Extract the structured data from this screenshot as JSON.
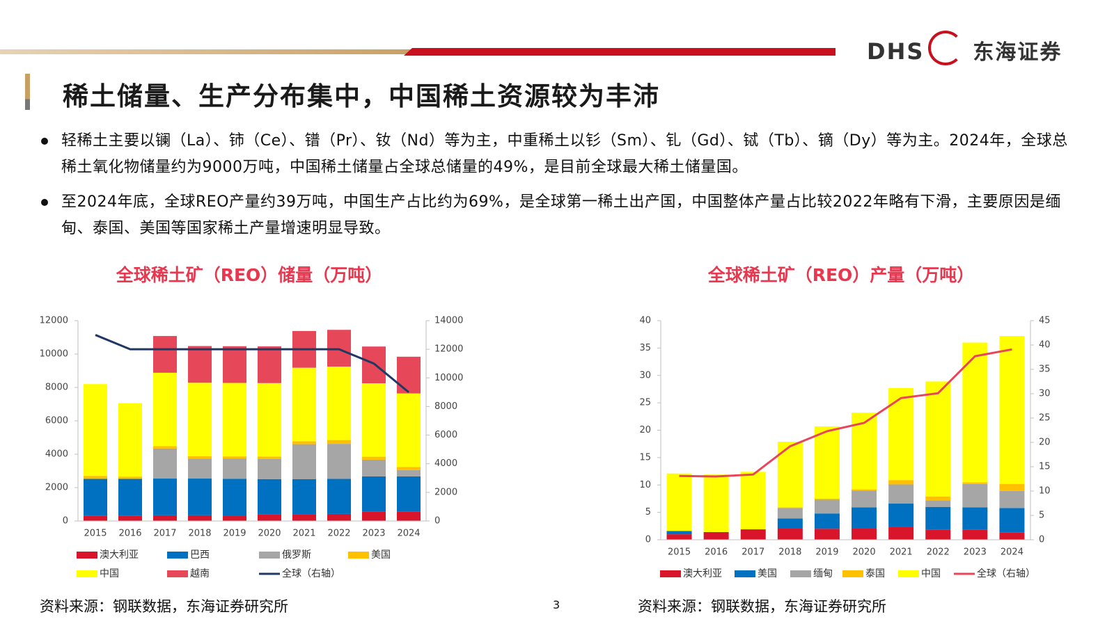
{
  "header": {
    "logo": "DHS",
    "company": "东海证券",
    "title": "稀土储量、生产分布集中，中国稀土资源较为丰沛"
  },
  "bullets": [
    "轻稀土主要以镧（La）、铈（Ce）、镨（Pr）、钕（Nd）等为主，中重稀土以钐（Sm）、钆（Gd）、铽（Tb）、镝（Dy）等为主。2024年，全球总稀土氧化物储量约为9000万吨，中国稀土储量占全球总储量的49%，是目前全球最大稀土储量国。",
    "至2024年底，全球REO产量约39万吨，中国生产占比约为69%，是全球第一稀土出产国，中国整体产量占比较2022年略有下滑，主要原因是缅甸、泰国、美国等国家稀土产量增速明显导致。"
  ],
  "sources": [
    "资料来源：钢联数据，东海证券研究所",
    "资料来源：钢联数据，东海证券研究所"
  ],
  "page_number": "3",
  "chart_data": [
    {
      "type": "stacked_bar_line",
      "title": "全球稀土矿（REO）储量（万吨）",
      "categories": [
        "2015",
        "2016",
        "2017",
        "2018",
        "2019",
        "2020",
        "2021",
        "2022",
        "2023",
        "2024"
      ],
      "ylim": [
        0,
        12000
      ],
      "yticks": [
        0,
        2000,
        4000,
        6000,
        8000,
        10000,
        12000
      ],
      "y2lim": [
        0,
        14000
      ],
      "y2ticks": [
        0,
        2000,
        4000,
        6000,
        8000,
        10000,
        12000,
        14000
      ],
      "legend": "bottom",
      "series": [
        {
          "name": "澳大利亚",
          "color": "#d9152b",
          "values": [
            320,
            320,
            340,
            340,
            330,
            410,
            400,
            420,
            570,
            570
          ]
        },
        {
          "name": "巴西",
          "color": "#0070c0",
          "values": [
            2200,
            2200,
            2200,
            2200,
            2200,
            2100,
            2100,
            2100,
            2100,
            2100
          ]
        },
        {
          "name": "俄罗斯",
          "color": "#a6a6a6",
          "values": [
            0,
            0,
            1800,
            1200,
            1200,
            1200,
            2100,
            2100,
            1000,
            380
          ]
        },
        {
          "name": "美国",
          "color": "#ffc000",
          "values": [
            180,
            140,
            140,
            140,
            140,
            150,
            180,
            230,
            180,
            190
          ]
        },
        {
          "name": "中国",
          "color": "#ffff00",
          "values": [
            5500,
            4400,
            4400,
            4400,
            4400,
            4400,
            4400,
            4400,
            4400,
            4400
          ]
        },
        {
          "name": "越南",
          "color": "#e6485a",
          "values": [
            0,
            0,
            2200,
            2200,
            2200,
            2200,
            2200,
            2200,
            2200,
            2200
          ]
        },
        {
          "name": "全球（右轴）",
          "color": "#1f3864",
          "axis": "y2",
          "values": [
            13000,
            12000,
            12000,
            12000,
            12000,
            12000,
            12000,
            12000,
            11000,
            9000
          ]
        }
      ]
    },
    {
      "type": "stacked_bar_line",
      "title": "全球稀土矿（REO）产量（万吨）",
      "categories": [
        "2015",
        "2016",
        "2017",
        "2018",
        "2019",
        "2020",
        "2021",
        "2022",
        "2023",
        "2024"
      ],
      "ylim": [
        0,
        40
      ],
      "yticks": [
        0,
        5,
        10,
        15,
        20,
        25,
        30,
        35,
        40
      ],
      "y2lim": [
        0,
        45
      ],
      "y2ticks": [
        0,
        5,
        10,
        15,
        20,
        25,
        30,
        35,
        40,
        45
      ],
      "legend": "bottom",
      "series": [
        {
          "name": "澳大利亚",
          "color": "#d9152b",
          "values": [
            1.0,
            1.4,
            1.9,
            2.1,
            2.0,
            2.1,
            2.4,
            1.8,
            1.8,
            1.3
          ]
        },
        {
          "name": "美国",
          "color": "#0070c0",
          "values": [
            0.6,
            0,
            0,
            1.8,
            2.8,
            3.8,
            4.2,
            4.2,
            4.1,
            4.5
          ]
        },
        {
          "name": "缅甸",
          "color": "#a6a6a6",
          "values": [
            0,
            0,
            0,
            1.9,
            2.5,
            3.1,
            3.5,
            1.2,
            4.3,
            3.1
          ]
        },
        {
          "name": "泰国",
          "color": "#ffc000",
          "values": [
            0,
            0,
            0,
            0.1,
            0.2,
            0.2,
            0.8,
            0.7,
            0.3,
            1.3
          ]
        },
        {
          "name": "中国",
          "color": "#ffff00",
          "values": [
            10.5,
            10.5,
            10.5,
            12,
            13.2,
            14,
            16.8,
            21,
            25.5,
            27
          ]
        },
        {
          "name": "全球（右轴）",
          "color": "#e8455a",
          "axis": "y2",
          "values": [
            13.1,
            13.0,
            13.4,
            19.2,
            22.3,
            24.0,
            29.1,
            30.1,
            37.7,
            39.1
          ]
        }
      ]
    }
  ]
}
